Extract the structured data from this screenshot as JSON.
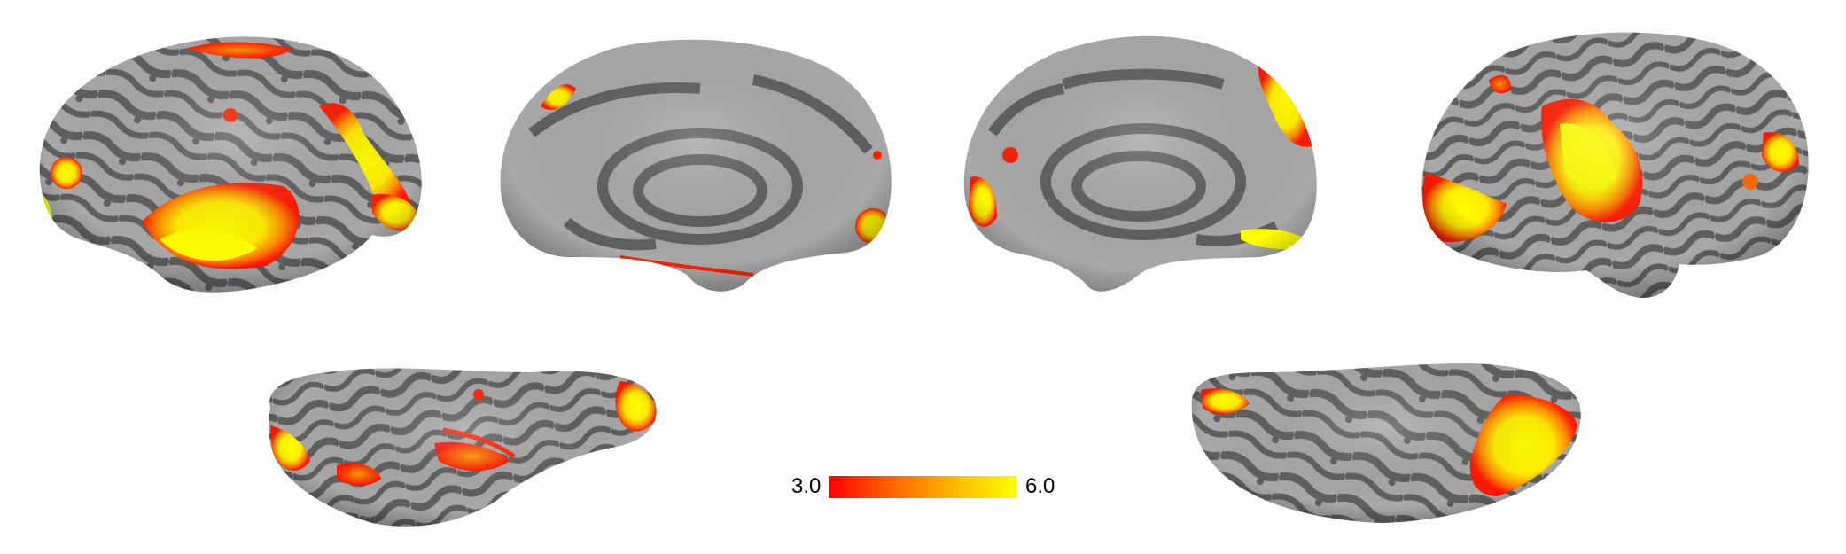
{
  "figure": {
    "panels": [
      {
        "name": "left-lateral"
      },
      {
        "name": "left-medial"
      },
      {
        "name": "right-medial"
      },
      {
        "name": "right-lateral"
      },
      {
        "name": "left-ventral"
      },
      {
        "name": "right-ventral"
      }
    ],
    "colors": {
      "sulcus": "#5f5f5f",
      "gyrus": "#a8a8a8",
      "activation_low": "#ff0000",
      "activation_high": "#ffff00"
    }
  },
  "colorbar": {
    "min_label": "3.0",
    "max_label": "6.0",
    "min_value": 3.0,
    "max_value": 6.0
  }
}
